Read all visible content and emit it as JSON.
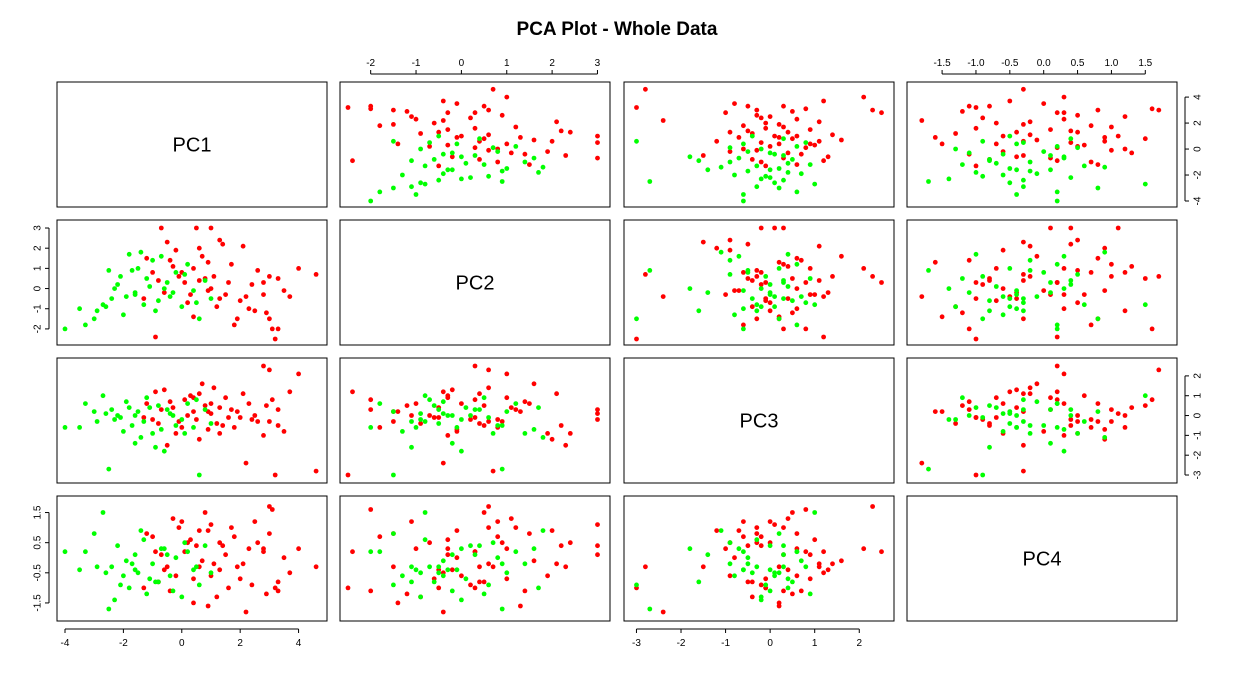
{
  "chart_data": {
    "type": "scatter",
    "kind": "pairs-matrix",
    "title": "PCA Plot - Whole Data",
    "variables": [
      "PC1",
      "PC2",
      "PC3",
      "PC4"
    ],
    "limits": {
      "PC1": [
        -4,
        4.7
      ],
      "PC2": [
        -2.5,
        3.1
      ],
      "PC3": [
        -3.1,
        2.6
      ],
      "PC4": [
        -1.9,
        1.85
      ]
    },
    "ticks": {
      "PC1": [
        -4,
        -2,
        0,
        2,
        4
      ],
      "PC2": [
        -2,
        -1,
        0,
        1,
        2,
        3
      ],
      "PC3": [
        -3,
        -2,
        -1,
        0,
        1,
        2
      ],
      "PC4": [
        -1.5,
        -1.0,
        -0.5,
        0.0,
        0.5,
        1.0,
        1.5
      ]
    },
    "tick_labels": {
      "PC1": [
        "-4",
        "-2",
        "0",
        "2",
        "4"
      ],
      "PC2": [
        "-2",
        "-1",
        "0",
        "1",
        "2",
        "3"
      ],
      "PC3": [
        "-3",
        "-2",
        "-1",
        "0",
        "1",
        "2"
      ],
      "PC4_bottom": [
        "-1.5",
        "-1.0",
        "-0.5",
        "0.0",
        "0.5",
        "1.0",
        "1.5"
      ],
      "PC4_left": [
        "-1.5",
        "-0.5",
        "0.5",
        "1.5"
      ]
    },
    "axes_layout": {
      "top": [
        "PC2",
        "PC4"
      ],
      "bottom": [
        "PC1",
        "PC3"
      ],
      "left": [
        "PC2",
        "PC4"
      ],
      "right": [
        "PC1",
        "PC3"
      ]
    },
    "groups": [
      {
        "color": "#ff0000",
        "marker": "filled-circle"
      },
      {
        "color": "#00ff00",
        "marker": "filled-circle"
      }
    ],
    "points": [
      {
        "g": 0,
        "PC1": 4.6,
        "PC2": 0.7,
        "PC3": -2.8,
        "PC4": -0.3
      },
      {
        "g": 0,
        "PC1": 3.2,
        "PC2": -2.5,
        "PC3": -3.0,
        "PC4": -1.0
      },
      {
        "g": 0,
        "PC1": 3.0,
        "PC2": -1.5,
        "PC3": -0.3,
        "PC4": 0.8
      },
      {
        "g": 0,
        "PC1": 2.1,
        "PC2": 2.1,
        "PC3": 1.1,
        "PC4": -0.2
      },
      {
        "g": 0,
        "PC1": 3.3,
        "PC2": 0.5,
        "PC3": -0.5,
        "PC4": -0.8
      },
      {
        "g": 0,
        "PC1": 1.0,
        "PC2": 3.0,
        "PC3": 0.1,
        "PC4": 1.1
      },
      {
        "g": 0,
        "PC1": 0.5,
        "PC2": 3.0,
        "PC3": -0.2,
        "PC4": 0.4
      },
      {
        "g": 0,
        "PC1": -0.7,
        "PC2": 3.0,
        "PC3": 0.3,
        "PC4": 0.1
      },
      {
        "g": 0,
        "PC1": 0.4,
        "PC2": 1.0,
        "PC3": 0.9,
        "PC4": -0.7
      },
      {
        "g": 0,
        "PC1": 2.8,
        "PC2": -0.3,
        "PC3": -1.0,
        "PC4": 0.3
      },
      {
        "g": 0,
        "PC1": 3.1,
        "PC2": -2.0,
        "PC3": 0.8,
        "PC4": 1.6
      },
      {
        "g": 0,
        "PC1": 1.6,
        "PC2": 0.3,
        "PC3": -0.1,
        "PC4": -1.0
      },
      {
        "g": 0,
        "PC1": 2.3,
        "PC2": -1.0,
        "PC3": 0.6,
        "PC4": 0.3
      },
      {
        "g": 0,
        "PC1": 0.0,
        "PC2": 0.8,
        "PC3": -0.6,
        "PC4": 1.2
      },
      {
        "g": 0,
        "PC1": -0.9,
        "PC2": -2.4,
        "PC3": 1.2,
        "PC4": 0.2
      },
      {
        "g": 0,
        "PC1": 1.3,
        "PC2": -0.5,
        "PC3": 0.4,
        "PC4": -0.4
      },
      {
        "g": 0,
        "PC1": 0.6,
        "PC2": 2.0,
        "PC3": -1.2,
        "PC4": 0.9
      },
      {
        "g": 0,
        "PC1": -0.4,
        "PC2": 1.4,
        "PC3": 0.7,
        "PC4": -1.1
      },
      {
        "g": 0,
        "PC1": 1.9,
        "PC2": -1.5,
        "PC3": 0.2,
        "PC4": -0.3
      },
      {
        "g": 0,
        "PC1": 2.6,
        "PC2": 0.9,
        "PC3": -0.3,
        "PC4": 0.5
      },
      {
        "g": 0,
        "PC1": 0.3,
        "PC2": -0.3,
        "PC3": 1.0,
        "PC4": 0.6
      },
      {
        "g": 0,
        "PC1": 1.2,
        "PC2": -0.9,
        "PC3": -0.4,
        "PC4": -1.3
      },
      {
        "g": 0,
        "PC1": -1.0,
        "PC2": 0.8,
        "PC3": -0.2,
        "PC4": 0.7
      },
      {
        "g": 0,
        "PC1": 0.8,
        "PC2": 0.5,
        "PC3": 0.5,
        "PC4": 1.5
      },
      {
        "g": 0,
        "PC1": 3.5,
        "PC2": -0.1,
        "PC3": -0.8,
        "PC4": 0.0
      },
      {
        "g": 0,
        "PC1": -0.2,
        "PC2": 1.9,
        "PC3": -0.9,
        "PC4": -0.6
      },
      {
        "g": 0,
        "PC1": 1.7,
        "PC2": 1.2,
        "PC3": 0.3,
        "PC4": 1.0
      },
      {
        "g": 0,
        "PC1": 2.0,
        "PC2": -0.6,
        "PC3": -0.1,
        "PC4": -0.7
      },
      {
        "g": 0,
        "PC1": 0.1,
        "PC2": 0.3,
        "PC3": 0.8,
        "PC4": 0.2
      },
      {
        "g": 0,
        "PC1": -0.6,
        "PC2": -0.2,
        "PC3": 1.3,
        "PC4": -0.4
      },
      {
        "g": 0,
        "PC1": 1.4,
        "PC2": 2.2,
        "PC3": -0.5,
        "PC4": 0.4
      },
      {
        "g": 0,
        "PC1": 2.9,
        "PC2": -1.2,
        "PC3": 0.5,
        "PC4": -1.2
      },
      {
        "g": 0,
        "PC1": 0.9,
        "PC2": -0.1,
        "PC3": -0.7,
        "PC4": 0.9
      },
      {
        "g": 0,
        "PC1": -0.3,
        "PC2": 1.1,
        "PC3": 0.4,
        "PC4": 1.3
      },
      {
        "g": 0,
        "PC1": 1.1,
        "PC2": 0.6,
        "PC3": 1.4,
        "PC4": -0.2
      },
      {
        "g": 0,
        "PC1": 2.4,
        "PC2": 0.2,
        "PC3": -0.2,
        "PC4": -0.9
      },
      {
        "g": 0,
        "PC1": 0.2,
        "PC2": -0.7,
        "PC3": 0.0,
        "PC4": 0.5
      },
      {
        "g": 0,
        "PC1": -0.8,
        "PC2": 0.4,
        "PC3": -0.4,
        "PC4": -0.8
      },
      {
        "g": 0,
        "PC1": 1.5,
        "PC2": -0.3,
        "PC3": 0.9,
        "PC4": 0.1
      },
      {
        "g": 0,
        "PC1": 3.0,
        "PC2": 0.6,
        "PC3": 2.3,
        "PC4": 1.7
      },
      {
        "g": 0,
        "PC1": 2.8,
        "PC2": 0.3,
        "PC3": 2.5,
        "PC4": 0.2
      },
      {
        "g": 0,
        "PC1": 3.7,
        "PC2": -0.4,
        "PC3": 1.2,
        "PC4": -0.5
      },
      {
        "g": 0,
        "PC1": 4.0,
        "PC2": 1.0,
        "PC3": 2.1,
        "PC4": 0.3
      },
      {
        "g": 0,
        "PC1": 0.7,
        "PC2": 1.6,
        "PC3": 1.6,
        "PC4": -0.1
      },
      {
        "g": 0,
        "PC1": -0.5,
        "PC2": 2.3,
        "PC3": -1.5,
        "PC4": -0.3
      },
      {
        "g": 0,
        "PC1": 1.8,
        "PC2": -1.8,
        "PC3": -0.6,
        "PC4": 0.7
      },
      {
        "g": 0,
        "PC1": 0.4,
        "PC2": -1.4,
        "PC3": 0.2,
        "PC4": -1.5
      },
      {
        "g": 0,
        "PC1": -1.2,
        "PC2": 1.5,
        "PC3": 0.6,
        "PC4": 0.8
      },
      {
        "g": 0,
        "PC1": 2.2,
        "PC2": -0.4,
        "PC3": -2.4,
        "PC4": -1.8
      },
      {
        "g": 0,
        "PC1": 1.0,
        "PC2": 0.0,
        "PC3": 0.6,
        "PC4": -0.6
      },
      {
        "g": 0,
        "PC1": -0.1,
        "PC2": 0.6,
        "PC3": -0.3,
        "PC4": 1.0
      },
      {
        "g": 0,
        "PC1": 3.3,
        "PC2": -2.0,
        "PC3": 0.3,
        "PC4": -1.1
      },
      {
        "g": 0,
        "PC1": 0.6,
        "PC2": 0.4,
        "PC3": 1.1,
        "PC4": -0.3
      },
      {
        "g": 0,
        "PC1": 1.3,
        "PC2": 2.4,
        "PC3": -0.9,
        "PC4": 0.5
      },
      {
        "g": 0,
        "PC1": 2.5,
        "PC2": -1.1,
        "PC3": 0.0,
        "PC4": 1.2
      },
      {
        "g": 0,
        "PC1": -1.3,
        "PC2": -0.5,
        "PC3": -0.1,
        "PC4": -1.0
      },
      {
        "g": 0,
        "PC1": 0.9,
        "PC2": 1.3,
        "PC3": 0.2,
        "PC4": -1.6
      },
      {
        "g": 1,
        "PC1": -4.0,
        "PC2": -2.0,
        "PC3": -0.6,
        "PC4": 0.2
      },
      {
        "g": 1,
        "PC1": -3.5,
        "PC2": -1.0,
        "PC3": -0.6,
        "PC4": -0.4
      },
      {
        "g": 1,
        "PC1": -3.0,
        "PC2": -1.5,
        "PC3": 0.2,
        "PC4": 0.8
      },
      {
        "g": 1,
        "PC1": -2.7,
        "PC2": -0.8,
        "PC3": 1.0,
        "PC4": 1.5
      },
      {
        "g": 1,
        "PC1": -2.5,
        "PC2": 0.9,
        "PC3": -2.7,
        "PC4": -1.7
      },
      {
        "g": 1,
        "PC1": -2.4,
        "PC2": -0.5,
        "PC3": 0.3,
        "PC4": -0.3
      },
      {
        "g": 1,
        "PC1": -2.2,
        "PC2": 0.2,
        "PC3": 0.0,
        "PC4": 0.4
      },
      {
        "g": 1,
        "PC1": -2.0,
        "PC2": -1.3,
        "PC3": -0.8,
        "PC4": -0.6
      },
      {
        "g": 1,
        "PC1": -1.8,
        "PC2": 1.7,
        "PC3": 0.4,
        "PC4": -1.0
      },
      {
        "g": 1,
        "PC1": -1.6,
        "PC2": -0.2,
        "PC3": -1.4,
        "PC4": 0.1
      },
      {
        "g": 1,
        "PC1": -1.5,
        "PC2": 1.0,
        "PC3": 0.2,
        "PC4": -0.5
      },
      {
        "g": 1,
        "PC1": -1.3,
        "PC2": -0.8,
        "PC3": -0.3,
        "PC4": 0.6
      },
      {
        "g": 1,
        "PC1": -1.2,
        "PC2": 0.5,
        "PC3": 0.9,
        "PC4": -1.2
      },
      {
        "g": 1,
        "PC1": -1.0,
        "PC2": 1.4,
        "PC3": -0.9,
        "PC4": -0.2
      },
      {
        "g": 1,
        "PC1": -0.8,
        "PC2": -0.6,
        "PC3": 0.5,
        "PC4": -0.8
      },
      {
        "g": 1,
        "PC1": -0.6,
        "PC2": 0.0,
        "PC3": -1.8,
        "PC4": 0.3
      },
      {
        "g": 1,
        "PC1": -0.4,
        "PC2": -0.4,
        "PC3": 0.1,
        "PC4": -0.6
      },
      {
        "g": 1,
        "PC1": -0.2,
        "PC2": 0.8,
        "PC3": -0.5,
        "PC4": 0.0
      },
      {
        "g": 1,
        "PC1": 0.0,
        "PC2": -0.9,
        "PC3": -0.2,
        "PC4": -1.3
      },
      {
        "g": 1,
        "PC1": 0.2,
        "PC2": 1.2,
        "PC3": 0.6,
        "PC4": 0.2
      },
      {
        "g": 1,
        "PC1": 0.4,
        "PC2": -0.1,
        "PC3": -0.6,
        "PC4": -0.4
      },
      {
        "g": 1,
        "PC1": 0.6,
        "PC2": -1.5,
        "PC3": -3.0,
        "PC4": -0.9
      },
      {
        "g": 1,
        "PC1": 0.8,
        "PC2": 0.4,
        "PC3": 0.3,
        "PC4": 0.4
      },
      {
        "g": 1,
        "PC1": 1.0,
        "PC2": -0.5,
        "PC3": -0.4,
        "PC4": -0.5
      },
      {
        "g": 1,
        "PC1": -3.3,
        "PC2": -1.8,
        "PC3": 0.6,
        "PC4": 0.2
      },
      {
        "g": 1,
        "PC1": -2.9,
        "PC2": -1.1,
        "PC3": -0.3,
        "PC4": -0.3
      },
      {
        "g": 1,
        "PC1": -2.1,
        "PC2": 0.6,
        "PC3": -0.1,
        "PC4": -0.9
      },
      {
        "g": 1,
        "PC1": -1.9,
        "PC2": -0.4,
        "PC3": 0.7,
        "PC4": -0.1
      },
      {
        "g": 1,
        "PC1": -1.4,
        "PC2": 1.8,
        "PC3": -1.1,
        "PC4": 0.9
      },
      {
        "g": 1,
        "PC1": -1.1,
        "PC2": 0.1,
        "PC3": 0.4,
        "PC4": -0.7
      },
      {
        "g": 1,
        "PC1": -0.7,
        "PC2": 1.6,
        "PC3": -0.7,
        "PC4": 0.3
      },
      {
        "g": 1,
        "PC1": -0.3,
        "PC2": -0.2,
        "PC3": 0.0,
        "PC4": -1.1
      },
      {
        "g": 1,
        "PC1": 0.1,
        "PC2": 0.7,
        "PC3": -0.9,
        "PC4": 0.5
      },
      {
        "g": 1,
        "PC1": 0.5,
        "PC2": -0.7,
        "PC3": 0.8,
        "PC4": -0.3
      },
      {
        "g": 1,
        "PC1": -2.6,
        "PC2": -0.9,
        "PC3": 0.1,
        "PC4": -0.5
      },
      {
        "g": 1,
        "PC1": -1.7,
        "PC2": 0.9,
        "PC3": -0.5,
        "PC4": -0.2
      },
      {
        "g": 1,
        "PC1": -0.9,
        "PC2": -1.1,
        "PC3": -1.6,
        "PC4": -0.8
      },
      {
        "g": 1,
        "PC1": -0.5,
        "PC2": 0.3,
        "PC3": 0.3,
        "PC4": 0.1
      },
      {
        "g": 1,
        "PC1": -2.3,
        "PC2": 0.0,
        "PC3": -0.2,
        "PC4": -1.4
      },
      {
        "g": 1,
        "PC1": -1.6,
        "PC2": -0.3,
        "PC3": 0.0,
        "PC4": -0.4
      }
    ]
  }
}
